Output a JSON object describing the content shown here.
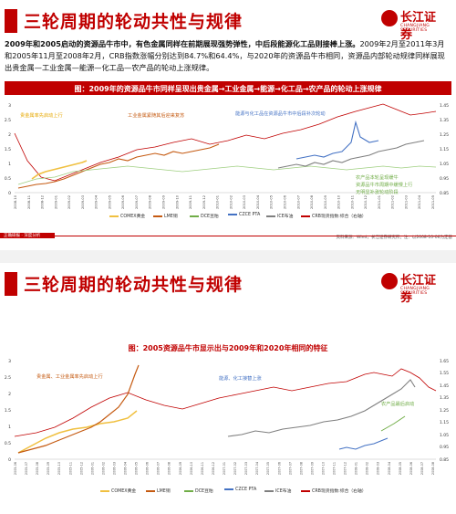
{
  "slides": [
    {
      "title": "三轮周期的轮动共性与规律",
      "logo_cn": "长江证券",
      "logo_en": "CHANGJIANG SECURITIES",
      "para_bold": "2009年和2005启动的资源品牛市中，有色金属同样在前期展现强势弹性，中后段能源化工品则接棒上涨。",
      "para_rest": "2009年2月至2011年3月和2005年11月至2008年2月，CRB指数涨幅分别达到84.7%和64.4%，与2020年的资源品牛市相同，资源品内部轮动规律同样展现出贵金属—工业金属—能源—化工品—农产品的轮动上涨规律。",
      "chart_title": "图：2009年的资源品牛市同样呈现出贵金属→工业金属→能源→化工品→农产品的轮动上涨规律",
      "annotations": {
        "a1": "贵金属率先启动上行",
        "a2": "工业金属紧随其后迎来复苏",
        "a3": "能源与化工品在资源品牛市中后段补次轮动",
        "a4": "农产品本轮呈现缓牛",
        "a5": "资源品牛市周期中缓慢上行",
        "a6": "无明显补涨轮动阶段"
      },
      "x_ticks": [
        "2008-10",
        "2008-11",
        "2008-12",
        "2009-01",
        "2009-02",
        "2009-03",
        "2009-04",
        "2009-05",
        "2009-06",
        "2009-07",
        "2009-08",
        "2009-09",
        "2009-10",
        "2009-11",
        "2009-12",
        "2010-01",
        "2010-02",
        "2010-03",
        "2010-04",
        "2010-05",
        "2010-06",
        "2010-07",
        "2010-08",
        "2010-09",
        "2010-10",
        "2010-11",
        "2010-12",
        "2011-01",
        "2011-02",
        "2011-03",
        "2011-04",
        "2011-05"
      ],
      "y_left": [
        "3",
        "2.5",
        "2",
        "1.5",
        "1",
        "0.5",
        "0"
      ],
      "y_right": [
        "1.45",
        "1.35",
        "1.25",
        "1.15",
        "1.05",
        "0.95",
        "0.85"
      ],
      "legend": [
        "COMEX黄金",
        "LME铜",
        "DCE豆粕",
        "CZCE PTA",
        "ICE布油",
        "CRB现货指数:综合（右轴）"
      ],
      "footer_left": "正确研报 · 深度分析",
      "footer_right": "资料来源：Wind，长江证券研究所；注：以2008-10-06为定基"
    },
    {
      "title": "三轮周期的轮动共性与规律",
      "logo_cn": "长江证券",
      "logo_en": "CHANGJIANG SECURITIES",
      "chart_title": "图：2005资源品牛市显示出与2009年和2020年相同的特征",
      "annotations": {
        "b1": "贵金属、工业金属率先启动上行",
        "b2": "能源、化工接替上涨",
        "b3": "农产品最后启动"
      },
      "x_ticks": [
        "2005-06",
        "2005-07",
        "2005-08",
        "2005-09",
        "2005-10",
        "2005-11",
        "2005-12",
        "2006-01",
        "2006-02",
        "2006-03",
        "2006-04",
        "2006-05",
        "2006-06",
        "2006-07",
        "2006-08",
        "2006-09",
        "2006-10",
        "2006-11",
        "2006-12",
        "2007-01",
        "2007-02",
        "2007-03",
        "2007-04",
        "2007-05",
        "2007-06",
        "2007-07",
        "2007-08",
        "2007-09",
        "2007-10",
        "2007-11",
        "2007-12",
        "2008-01",
        "2008-02",
        "2008-03",
        "2008-04",
        "2008-05",
        "2008-06",
        "2008-07",
        "2008-08"
      ],
      "y_left": [
        "3",
        "2.5",
        "2",
        "1.5",
        "1",
        "0.5",
        "0"
      ],
      "y_right": [
        "1.65",
        "1.55",
        "1.45",
        "1.35",
        "1.25",
        "1.15",
        "1.05",
        "0.95",
        "0.85"
      ],
      "legend": [
        "COMEX黄金",
        "LME铜",
        "DCE豆粕",
        "CZCE PTA",
        "ICE布油",
        "CRB现货指数:综合（右轴）"
      ]
    }
  ],
  "colors": {
    "brand": "#c00000",
    "gold": "#f0c040",
    "copper": "#c55a11",
    "soymeal": "#70ad47",
    "pta": "#4472c4",
    "brent": "#7f7f7f",
    "crb": "#c00000"
  }
}
